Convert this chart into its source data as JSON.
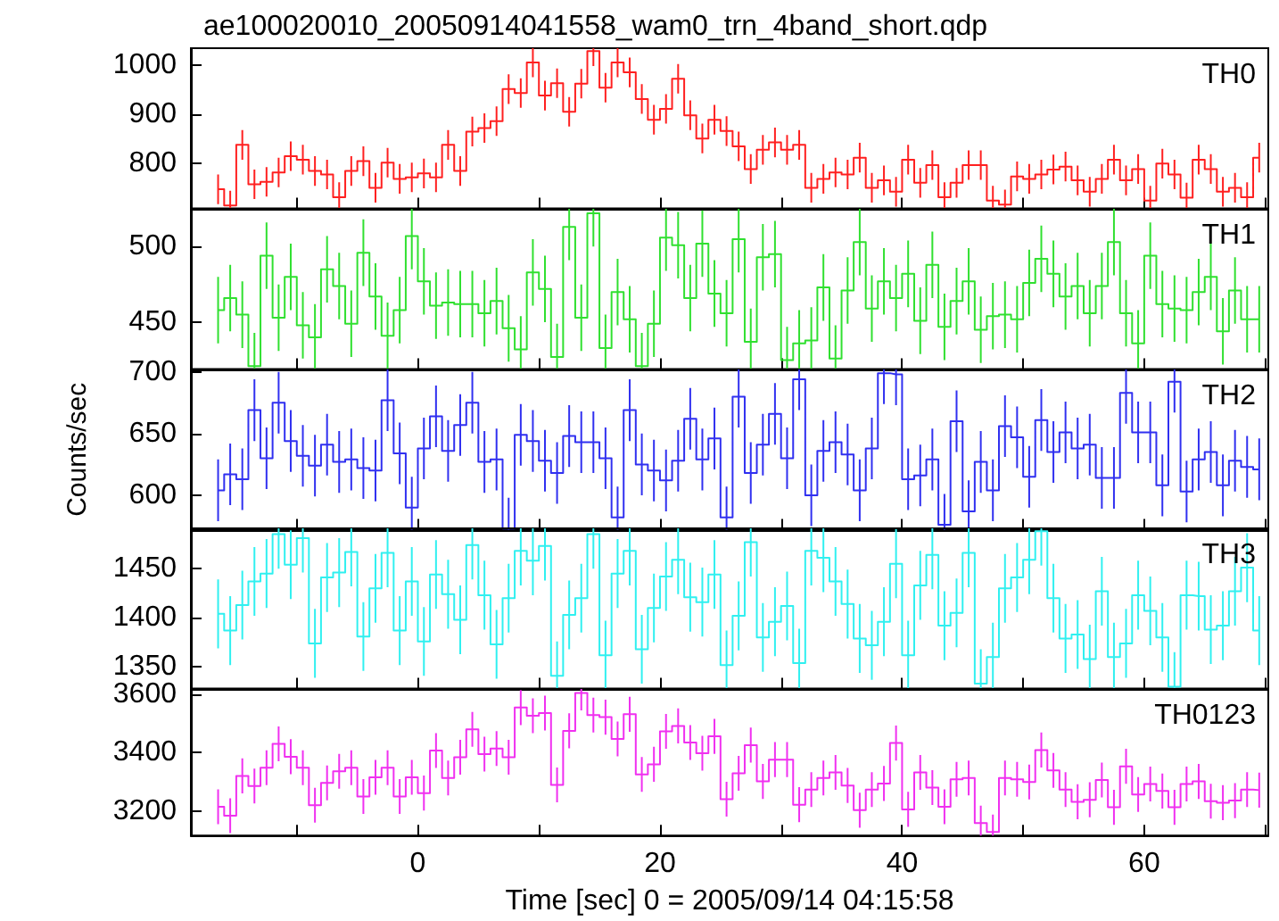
{
  "chart_data": [
    {
      "type": "step",
      "title": "ae100020010_20050914041558_wam0_trn_4band_short.qdp",
      "legend": "top right",
      "tick_labels": "y",
      "xlim": [
        -18.75,
        70.25
      ],
      "xticks": [
        {
          "value": -10,
          "label": null
        },
        0,
        {
          "value": 10,
          "label": null
        },
        20,
        {
          "value": 30,
          "label": null
        },
        40,
        {
          "value": 50,
          "label": null
        },
        60,
        {
          "value": 70,
          "label": null
        }
      ],
      "ylim": [
        709,
        1034
      ],
      "yticks": [
        800,
        900,
        1000
      ],
      "x": [
        -16.5,
        -15.5,
        -14.5,
        -13.5,
        -12.5,
        -11.5,
        -10.5,
        -9.5,
        -8.5,
        -7.5,
        -6.5,
        -5.5,
        -4.5,
        -3.5,
        -2.5,
        -1.5,
        -0.5,
        0.5,
        1.5,
        2.5,
        3.5,
        4.5,
        5.5,
        6.5,
        7.5,
        8.5,
        9.5,
        10.5,
        11.5,
        12.5,
        13.5,
        14.5,
        15.5,
        16.5,
        17.5,
        18.5,
        19.5,
        20.5,
        21.5,
        22.5,
        23.5,
        24.5,
        25.5,
        26.5,
        27.5,
        28.5,
        29.5,
        30.5,
        31.5,
        32.5,
        33.5,
        34.5,
        35.5,
        36.5,
        37.5,
        38.5,
        39.5,
        40.5,
        41.5,
        42.5,
        43.5,
        44.5,
        45.5,
        46.5,
        47.5,
        48.5,
        49.5,
        50.5,
        51.5,
        52.5,
        53.5,
        54.5,
        55.5,
        56.5,
        57.5,
        58.5,
        59.5,
        60.5,
        61.5,
        62.5,
        63.5,
        64.5,
        65.5,
        66.5,
        67.5,
        68.5,
        69.5
      ],
      "series": [
        {
          "name": "TH0",
          "color": "#ff2020",
          "values": [
            748,
            715,
            838,
            758,
            763,
            782,
            815,
            808,
            785,
            778,
            732,
            785,
            805,
            751,
            802,
            769,
            772,
            780,
            772,
            838,
            785,
            865,
            872,
            886,
            951,
            943,
            1005,
            938,
            963,
            905,
            962,
            1028,
            954,
            1005,
            985,
            931,
            889,
            911,
            972,
            898,
            851,
            889,
            866,
            835,
            789,
            828,
            843,
            828,
            838,
            751,
            769,
            782,
            778,
            812,
            751,
            766,
            743,
            808,
            761,
            797,
            732,
            761,
            797,
            797,
            725,
            717,
            774,
            769,
            778,
            788,
            794,
            766,
            743,
            769,
            808,
            766,
            789,
            725,
            800,
            778,
            731,
            808,
            789,
            743,
            751,
            732,
            812
          ],
          "errors": [
            30,
            30,
            30,
            30,
            30,
            30,
            30,
            30,
            30,
            30,
            30,
            30,
            30,
            30,
            30,
            30,
            30,
            30,
            30,
            30,
            30,
            30,
            30,
            30,
            30,
            30,
            30,
            30,
            30,
            30,
            30,
            30,
            30,
            30,
            30,
            30,
            30,
            30,
            30,
            30,
            30,
            30,
            30,
            30,
            30,
            30,
            30,
            30,
            30,
            30,
            30,
            30,
            30,
            30,
            30,
            30,
            30,
            30,
            30,
            30,
            30,
            30,
            30,
            30,
            30,
            30,
            30,
            30,
            30,
            30,
            30,
            30,
            30,
            30,
            30,
            30,
            30,
            30,
            30,
            30,
            30,
            30,
            30,
            30,
            30,
            30,
            30
          ]
        }
      ]
    },
    {
      "type": "step",
      "legend": "top right",
      "tick_labels": "y",
      "xlim": [
        -18.75,
        70.25
      ],
      "xticks": [
        {
          "value": -10,
          "label": null
        },
        0,
        {
          "value": 10,
          "label": null
        },
        20,
        {
          "value": 30,
          "label": null
        },
        40,
        {
          "value": 50,
          "label": null
        },
        60,
        {
          "value": 70,
          "label": null
        }
      ],
      "ylim": [
        419,
        525
      ],
      "yticks": [
        450,
        500
      ],
      "x": [
        -16.5,
        -15.5,
        -14.5,
        -13.5,
        -12.5,
        -11.5,
        -10.5,
        -9.5,
        -8.5,
        -7.5,
        -6.5,
        -5.5,
        -4.5,
        -3.5,
        -2.5,
        -1.5,
        -0.5,
        0.5,
        1.5,
        2.5,
        3.5,
        4.5,
        5.5,
        6.5,
        7.5,
        8.5,
        9.5,
        10.5,
        11.5,
        12.5,
        13.5,
        14.5,
        15.5,
        16.5,
        17.5,
        18.5,
        19.5,
        20.5,
        21.5,
        22.5,
        23.5,
        24.5,
        25.5,
        26.5,
        27.5,
        28.5,
        29.5,
        30.5,
        31.5,
        32.5,
        33.5,
        34.5,
        35.5,
        36.5,
        37.5,
        38.5,
        39.5,
        40.5,
        41.5,
        42.5,
        43.5,
        44.5,
        45.5,
        46.5,
        47.5,
        48.5,
        49.5,
        50.5,
        51.5,
        52.5,
        53.5,
        54.5,
        55.5,
        56.5,
        57.5,
        58.5,
        59.5,
        60.5,
        61.5,
        62.5,
        63.5,
        64.5,
        65.5,
        66.5,
        67.5,
        68.5,
        69.5
      ],
      "series": [
        {
          "name": "TH1",
          "color": "#30e030",
          "values": [
            458,
            466,
            455,
            421,
            494,
            453,
            480,
            448,
            440,
            485,
            474,
            449,
            496,
            467,
            441,
            458,
            507,
            477,
            461,
            463,
            462,
            462,
            456,
            464,
            446,
            432,
            483,
            472,
            427,
            513,
            453,
            522,
            433,
            470,
            452,
            421,
            449,
            506,
            501,
            466,
            502,
            469,
            456,
            505,
            437,
            493,
            495,
            425,
            436,
            438,
            473,
            426,
            471,
            503,
            459,
            477,
            466,
            482,
            451,
            488,
            447,
            464,
            477,
            445,
            454,
            455,
            452,
            476,
            492,
            482,
            467,
            474,
            456,
            474,
            503,
            456,
            436,
            494,
            462,
            459,
            458,
            470,
            480,
            444,
            471,
            452,
            452
          ],
          "errors": [
            22,
            22,
            22,
            22,
            22,
            22,
            22,
            22,
            22,
            22,
            22,
            22,
            22,
            22,
            22,
            22,
            22,
            22,
            22,
            22,
            22,
            22,
            22,
            22,
            22,
            22,
            22,
            22,
            22,
            22,
            22,
            22,
            22,
            22,
            22,
            22,
            22,
            22,
            22,
            22,
            22,
            22,
            22,
            22,
            22,
            22,
            22,
            22,
            22,
            22,
            22,
            22,
            22,
            22,
            22,
            22,
            22,
            22,
            22,
            22,
            22,
            22,
            22,
            22,
            22,
            22,
            22,
            22,
            22,
            22,
            22,
            22,
            22,
            22,
            22,
            22,
            22,
            22,
            22,
            22,
            22,
            22,
            22,
            22,
            22,
            22,
            22
          ]
        }
      ]
    },
    {
      "type": "step",
      "legend": "top right",
      "tick_labels": "y",
      "ylabel": "Counts/sec",
      "xlim": [
        -18.75,
        70.25
      ],
      "xticks": [
        {
          "value": -10,
          "label": null
        },
        0,
        {
          "value": 10,
          "label": null
        },
        20,
        {
          "value": 30,
          "label": null
        },
        40,
        {
          "value": 50,
          "label": null
        },
        60,
        {
          "value": 70,
          "label": null
        }
      ],
      "ylim": [
        572,
        702
      ],
      "yticks": [
        600,
        650,
        700
      ],
      "x": [
        -16.5,
        -15.5,
        -14.5,
        -13.5,
        -12.5,
        -11.5,
        -10.5,
        -9.5,
        -8.5,
        -7.5,
        -6.5,
        -5.5,
        -4.5,
        -3.5,
        -2.5,
        -1.5,
        -0.5,
        0.5,
        1.5,
        2.5,
        3.5,
        4.5,
        5.5,
        6.5,
        7.5,
        8.5,
        9.5,
        10.5,
        11.5,
        12.5,
        13.5,
        14.5,
        15.5,
        16.5,
        17.5,
        18.5,
        19.5,
        20.5,
        21.5,
        22.5,
        23.5,
        24.5,
        25.5,
        26.5,
        27.5,
        28.5,
        29.5,
        30.5,
        31.5,
        32.5,
        33.5,
        34.5,
        35.5,
        36.5,
        37.5,
        38.5,
        39.5,
        40.5,
        41.5,
        42.5,
        43.5,
        44.5,
        45.5,
        46.5,
        47.5,
        48.5,
        49.5,
        50.5,
        51.5,
        52.5,
        53.5,
        54.5,
        55.5,
        56.5,
        57.5,
        58.5,
        59.5,
        60.5,
        61.5,
        62.5,
        63.5,
        64.5,
        65.5,
        66.5,
        67.5,
        68.5,
        69.5
      ],
      "series": [
        {
          "name": "TH2",
          "color": "#3030f0",
          "values": [
            604,
            617,
            613,
            669,
            630,
            675,
            644,
            632,
            624,
            641,
            627,
            629,
            622,
            620,
            677,
            634,
            590,
            638,
            664,
            636,
            657,
            675,
            627,
            629,
            573,
            649,
            644,
            628,
            618,
            648,
            643,
            643,
            630,
            582,
            669,
            625,
            620,
            612,
            628,
            662,
            629,
            646,
            582,
            680,
            618,
            641,
            666,
            630,
            694,
            600,
            636,
            643,
            633,
            604,
            638,
            699,
            698,
            613,
            616,
            629,
            576,
            660,
            587,
            627,
            604,
            656,
            647,
            615,
            661,
            635,
            651,
            638,
            641,
            614,
            614,
            683,
            651,
            651,
            608,
            692,
            603,
            629,
            635,
            608,
            628,
            623,
            621
          ],
          "errors": [
            25,
            25,
            25,
            25,
            25,
            25,
            25,
            25,
            25,
            25,
            25,
            25,
            25,
            25,
            25,
            25,
            25,
            25,
            25,
            25,
            25,
            25,
            25,
            25,
            25,
            25,
            25,
            25,
            25,
            25,
            25,
            25,
            25,
            25,
            25,
            25,
            25,
            25,
            25,
            25,
            25,
            25,
            25,
            25,
            25,
            25,
            25,
            25,
            25,
            25,
            25,
            25,
            25,
            25,
            25,
            25,
            25,
            25,
            25,
            25,
            25,
            25,
            25,
            25,
            25,
            25,
            25,
            25,
            25,
            25,
            25,
            25,
            25,
            25,
            25,
            25,
            25,
            25,
            25,
            25,
            25,
            25,
            25,
            25,
            25,
            25,
            25
          ]
        }
      ]
    },
    {
      "type": "step",
      "legend": "top right",
      "tick_labels": "y",
      "xlim": [
        -18.75,
        70.25
      ],
      "xticks": [
        {
          "value": -10,
          "label": null
        },
        0,
        {
          "value": 10,
          "label": null
        },
        20,
        {
          "value": 30,
          "label": null
        },
        40,
        {
          "value": 50,
          "label": null
        },
        60,
        {
          "value": 70,
          "label": null
        }
      ],
      "ylim": [
        1328,
        1491
      ],
      "yticks": [
        1350,
        1400,
        1450
      ],
      "x": [
        -16.5,
        -15.5,
        -14.5,
        -13.5,
        -12.5,
        -11.5,
        -10.5,
        -9.5,
        -8.5,
        -7.5,
        -6.5,
        -5.5,
        -4.5,
        -3.5,
        -2.5,
        -1.5,
        -0.5,
        0.5,
        1.5,
        2.5,
        3.5,
        4.5,
        5.5,
        6.5,
        7.5,
        8.5,
        9.5,
        10.5,
        11.5,
        12.5,
        13.5,
        14.5,
        15.5,
        16.5,
        17.5,
        18.5,
        19.5,
        20.5,
        21.5,
        22.5,
        23.5,
        24.5,
        25.5,
        26.5,
        27.5,
        28.5,
        29.5,
        30.5,
        31.5,
        32.5,
        33.5,
        34.5,
        35.5,
        36.5,
        37.5,
        38.5,
        39.5,
        40.5,
        41.5,
        42.5,
        43.5,
        44.5,
        45.5,
        46.5,
        47.5,
        48.5,
        49.5,
        50.5,
        51.5,
        52.5,
        53.5,
        54.5,
        55.5,
        56.5,
        57.5,
        58.5,
        59.5,
        60.5,
        61.5,
        62.5,
        63.5,
        64.5,
        65.5,
        66.5,
        67.5,
        68.5,
        69.5
      ],
      "series": [
        {
          "name": "TH3",
          "color": "#30f0f0",
          "values": [
            1404,
            1387,
            1413,
            1437,
            1445,
            1485,
            1454,
            1481,
            1374,
            1441,
            1446,
            1467,
            1381,
            1430,
            1466,
            1387,
            1437,
            1376,
            1444,
            1424,
            1398,
            1474,
            1423,
            1373,
            1420,
            1468,
            1458,
            1473,
            1341,
            1403,
            1420,
            1485,
            1362,
            1445,
            1468,
            1368,
            1410,
            1442,
            1459,
            1421,
            1416,
            1444,
            1352,
            1402,
            1477,
            1380,
            1396,
            1412,
            1354,
            1468,
            1461,
            1437,
            1414,
            1379,
            1372,
            1396,
            1455,
            1362,
            1433,
            1464,
            1392,
            1405,
            1466,
            1333,
            1360,
            1430,
            1441,
            1459,
            1488,
            1420,
            1379,
            1383,
            1358,
            1427,
            1360,
            1374,
            1423,
            1407,
            1380,
            1330,
            1423,
            1422,
            1388,
            1392,
            1427,
            1451,
            1387
          ],
          "errors": [
            35,
            35,
            35,
            35,
            35,
            35,
            35,
            35,
            35,
            35,
            35,
            35,
            35,
            35,
            35,
            35,
            35,
            35,
            35,
            35,
            35,
            35,
            35,
            35,
            35,
            35,
            35,
            35,
            35,
            35,
            35,
            35,
            35,
            35,
            35,
            35,
            35,
            35,
            35,
            35,
            35,
            35,
            35,
            35,
            35,
            35,
            35,
            35,
            35,
            35,
            35,
            35,
            35,
            35,
            35,
            35,
            35,
            35,
            35,
            35,
            35,
            35,
            35,
            35,
            35,
            35,
            35,
            35,
            35,
            35,
            35,
            35,
            35,
            35,
            35,
            35,
            35,
            35,
            35,
            35,
            35,
            35,
            35,
            35,
            35,
            35,
            35
          ]
        }
      ]
    },
    {
      "type": "step",
      "legend": "top right",
      "xlabel": "Time [sec] 0 = 2005/09/14 04:15:58",
      "xlim": [
        -18.75,
        70.25
      ],
      "xticks": [
        {
          "value": -10,
          "label": null
        },
        0,
        {
          "value": 10,
          "label": null
        },
        20,
        {
          "value": 30,
          "label": null
        },
        40,
        {
          "value": 50,
          "label": null
        },
        60,
        {
          "value": 70,
          "label": null
        }
      ],
      "ylim": [
        3115,
        3619
      ],
      "yticks": [
        3200,
        3400,
        3600
      ],
      "x": [
        -16.5,
        -15.5,
        -14.5,
        -13.5,
        -12.5,
        -11.5,
        -10.5,
        -9.5,
        -8.5,
        -7.5,
        -6.5,
        -5.5,
        -4.5,
        -3.5,
        -2.5,
        -1.5,
        -0.5,
        0.5,
        1.5,
        2.5,
        3.5,
        4.5,
        5.5,
        6.5,
        7.5,
        8.5,
        9.5,
        10.5,
        11.5,
        12.5,
        13.5,
        14.5,
        15.5,
        16.5,
        17.5,
        18.5,
        19.5,
        20.5,
        21.5,
        22.5,
        23.5,
        24.5,
        25.5,
        26.5,
        27.5,
        28.5,
        29.5,
        30.5,
        31.5,
        32.5,
        33.5,
        34.5,
        35.5,
        36.5,
        37.5,
        38.5,
        39.5,
        40.5,
        41.5,
        42.5,
        43.5,
        44.5,
        45.5,
        46.5,
        47.5,
        48.5,
        49.5,
        50.5,
        51.5,
        52.5,
        53.5,
        54.5,
        55.5,
        56.5,
        57.5,
        58.5,
        59.5,
        60.5,
        61.5,
        62.5,
        63.5,
        64.5,
        65.5,
        66.5,
        67.5,
        68.5,
        69.5
      ],
      "series": [
        {
          "name": "TH0123",
          "color": "#f030f0",
          "values": [
            3214,
            3183,
            3320,
            3285,
            3348,
            3430,
            3386,
            3348,
            3219,
            3296,
            3336,
            3348,
            3249,
            3315,
            3348,
            3249,
            3315,
            3261,
            3407,
            3313,
            3384,
            3480,
            3395,
            3414,
            3384,
            3555,
            3527,
            3536,
            3289,
            3475,
            3605,
            3529,
            3522,
            3447,
            3532,
            3325,
            3360,
            3473,
            3492,
            3435,
            3398,
            3456,
            3240,
            3329,
            3426,
            3301,
            3376,
            3376,
            3221,
            3273,
            3313,
            3332,
            3287,
            3202,
            3273,
            3294,
            3433,
            3205,
            3332,
            3280,
            3214,
            3308,
            3313,
            3158,
            3127,
            3313,
            3308,
            3299,
            3409,
            3339,
            3273,
            3231,
            3238,
            3306,
            3212,
            3353,
            3256,
            3292,
            3268,
            3212,
            3292,
            3301,
            3233,
            3228,
            3235,
            3273,
            3271
          ],
          "errors": [
            60,
            60,
            60,
            60,
            60,
            60,
            60,
            60,
            60,
            60,
            60,
            60,
            60,
            60,
            60,
            60,
            60,
            60,
            60,
            60,
            60,
            60,
            60,
            60,
            60,
            60,
            60,
            60,
            60,
            60,
            60,
            60,
            60,
            60,
            60,
            60,
            60,
            60,
            60,
            60,
            60,
            60,
            60,
            60,
            60,
            60,
            60,
            60,
            60,
            60,
            60,
            60,
            60,
            60,
            60,
            60,
            60,
            60,
            60,
            60,
            60,
            60,
            60,
            60,
            60,
            60,
            60,
            60,
            60,
            60,
            60,
            60,
            60,
            60,
            60,
            60,
            60,
            60,
            60,
            60,
            60,
            60,
            60,
            60,
            60,
            60,
            60
          ]
        }
      ]
    }
  ]
}
